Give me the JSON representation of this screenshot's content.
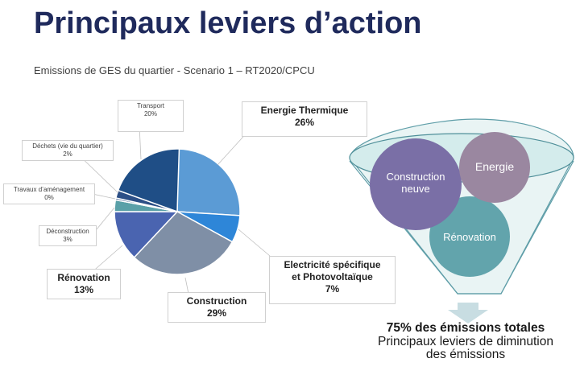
{
  "header": {
    "title": "Principaux leviers d’action",
    "subtitle": "Emissions de GES du quartier - Scenario 1 – RT2020/CPCU"
  },
  "chart_data": {
    "type": "pie",
    "title": "",
    "slices": [
      {
        "label": "Energie Thermique",
        "value": 26,
        "value_label": "26%",
        "color": "#5b9bd5"
      },
      {
        "label": "Electricité spécifique et Photovoltaïque",
        "value": 7,
        "value_label": "7%",
        "color": "#2e86d8"
      },
      {
        "label": "Construction",
        "value": 29,
        "value_label": "29%",
        "color": "#7f8fa6"
      },
      {
        "label": "Rénovation",
        "value": 13,
        "value_label": "13%",
        "color": "#4a64b0"
      },
      {
        "label": "Déconstruction",
        "value": 3,
        "value_label": "3%",
        "color": "#5aa0a8"
      },
      {
        "label": "Travaux d’aménagement",
        "value": 0,
        "value_label": "0%",
        "color": "#3a5a8c"
      },
      {
        "label": "Déchets (vie du quartier)",
        "value": 2,
        "value_label": "2%",
        "color": "#2c4f86"
      },
      {
        "label": "Transport",
        "value": 20,
        "value_label": "20%",
        "color": "#1f4e86"
      }
    ]
  },
  "funnel": {
    "circles": [
      {
        "label": "Construction neuve",
        "color": "#7a6fa6"
      },
      {
        "label": "Energie",
        "color": "#9a87a0"
      },
      {
        "label": "Rénovation",
        "color": "#62a4ac"
      }
    ],
    "ring_color": "#d4ecec",
    "arrow_color": "#c8dde2"
  },
  "summary": {
    "headline": "75% des émissions totales",
    "line2": "Principaux leviers de diminution",
    "line3": "des émissions"
  }
}
